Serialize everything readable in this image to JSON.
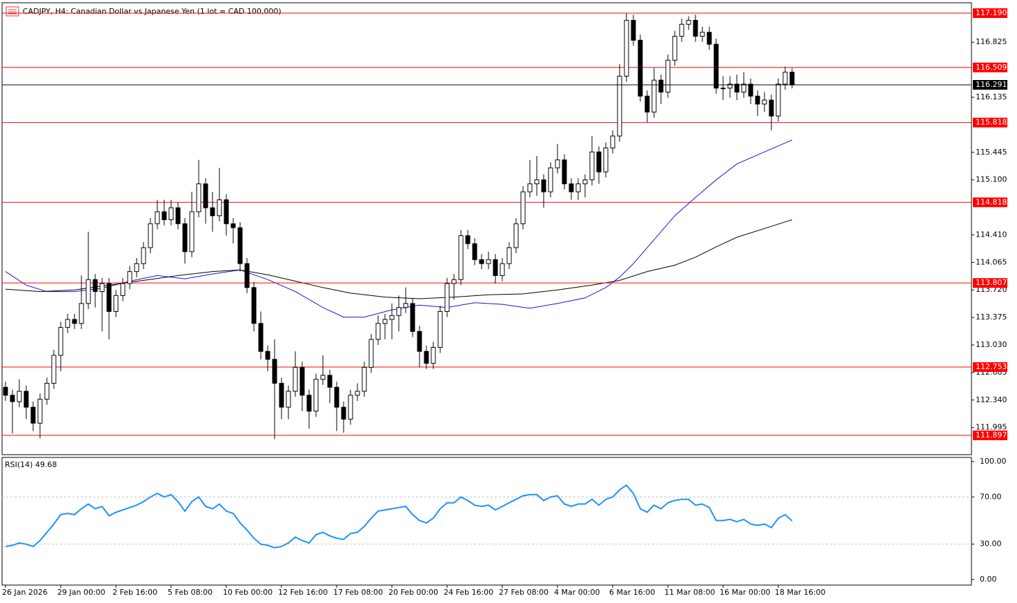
{
  "chart_data": {
    "type": "candlestick",
    "title": "CADJPY, H4:  Canadian Dollar vs Japanese Yen (1 lot = CAD 100,000)",
    "categories": [
      "26 Jan 2026",
      null,
      null,
      null,
      null,
      null,
      null,
      null,
      "29 Jan 00:00",
      null,
      null,
      null,
      null,
      null,
      null,
      null,
      "2 Feb 16:00",
      null,
      null,
      null,
      null,
      null,
      null,
      null,
      "5 Feb 08:00",
      null,
      null,
      null,
      null,
      null,
      null,
      null,
      "10 Feb 00:00",
      null,
      null,
      null,
      null,
      null,
      null,
      null,
      "12 Feb 16:00",
      null,
      null,
      null,
      null,
      null,
      null,
      null,
      "17 Feb 08:00",
      null,
      null,
      null,
      null,
      null,
      null,
      null,
      "20 Feb 00:00",
      null,
      null,
      null,
      null,
      null,
      null,
      null,
      "24 Feb 16:00",
      null,
      null,
      null,
      null,
      null,
      null,
      null,
      "27 Feb 08:00",
      null,
      null,
      null,
      null,
      null,
      null,
      null,
      "4 Mar 00:00",
      null,
      null,
      null,
      null,
      null,
      null,
      null,
      "6 Mar 16:00",
      null,
      null,
      null,
      null,
      null,
      null,
      null,
      "11 Mar 08:00",
      null,
      null,
      null,
      null,
      null,
      null,
      null,
      "16 Mar 00:00",
      null,
      null,
      null,
      null,
      null,
      null,
      null,
      "18 Mar 16:00",
      null,
      null
    ],
    "candles": [
      [
        112.5,
        112.57,
        112.33,
        112.4
      ],
      [
        112.4,
        112.47,
        111.92,
        112.32
      ],
      [
        112.32,
        112.6,
        112.25,
        112.45
      ],
      [
        112.45,
        112.52,
        112.1,
        112.25
      ],
      [
        112.25,
        112.32,
        111.95,
        112.05
      ],
      [
        112.05,
        112.42,
        111.86,
        112.35
      ],
      [
        112.35,
        112.62,
        112.28,
        112.55
      ],
      [
        112.55,
        112.97,
        112.48,
        112.9
      ],
      [
        112.9,
        113.32,
        112.7,
        113.25
      ],
      [
        113.25,
        113.42,
        113.18,
        113.35
      ],
      [
        113.35,
        113.42,
        113.23,
        113.3
      ],
      [
        113.3,
        113.9,
        113.23,
        113.55
      ],
      [
        113.55,
        114.45,
        113.48,
        113.85
      ],
      [
        113.85,
        113.92,
        113.5,
        113.7
      ],
      [
        113.7,
        113.87,
        113.2,
        113.8
      ],
      [
        113.8,
        113.87,
        113.1,
        113.45
      ],
      [
        113.45,
        113.72,
        113.38,
        113.65
      ],
      [
        113.65,
        113.87,
        113.58,
        113.8
      ],
      [
        113.8,
        114.02,
        113.73,
        113.95
      ],
      [
        113.95,
        114.12,
        113.88,
        114.05
      ],
      [
        114.05,
        114.32,
        113.98,
        114.25
      ],
      [
        114.25,
        114.62,
        114.18,
        114.55
      ],
      [
        114.55,
        114.85,
        114.48,
        114.7
      ],
      [
        114.7,
        114.85,
        114.53,
        114.6
      ],
      [
        114.6,
        114.85,
        114.53,
        114.75
      ],
      [
        114.75,
        114.82,
        114.48,
        114.55
      ],
      [
        114.55,
        114.62,
        114.05,
        114.2
      ],
      [
        114.2,
        114.95,
        114.13,
        114.7
      ],
      [
        114.7,
        115.35,
        114.63,
        115.05
      ],
      [
        115.05,
        115.12,
        114.55,
        114.75
      ],
      [
        114.75,
        114.95,
        114.45,
        114.65
      ],
      [
        114.65,
        115.25,
        114.58,
        114.85
      ],
      [
        114.85,
        114.92,
        114.4,
        114.55
      ],
      [
        114.55,
        114.62,
        114.3,
        114.5
      ],
      [
        114.5,
        114.57,
        113.95,
        114.05
      ],
      [
        114.05,
        114.12,
        113.68,
        113.75
      ],
      [
        113.75,
        113.82,
        113.2,
        113.3
      ],
      [
        113.3,
        113.45,
        112.85,
        112.95
      ],
      [
        112.95,
        113.02,
        112.7,
        112.85
      ],
      [
        112.85,
        113.1,
        111.85,
        112.55
      ],
      [
        112.55,
        112.62,
        112.1,
        112.25
      ],
      [
        112.25,
        112.52,
        112.1,
        112.45
      ],
      [
        112.45,
        112.95,
        112.38,
        112.75
      ],
      [
        112.75,
        112.82,
        112.2,
        112.4
      ],
      [
        112.4,
        112.47,
        111.98,
        112.2
      ],
      [
        112.2,
        112.67,
        112.13,
        112.6
      ],
      [
        112.6,
        112.9,
        112.53,
        112.65
      ],
      [
        112.65,
        112.72,
        112.3,
        112.5
      ],
      [
        112.5,
        112.57,
        111.95,
        112.25
      ],
      [
        112.25,
        112.32,
        111.93,
        112.1
      ],
      [
        112.1,
        112.47,
        112.03,
        112.4
      ],
      [
        112.4,
        112.55,
        112.33,
        112.45
      ],
      [
        112.45,
        112.82,
        112.38,
        112.75
      ],
      [
        112.75,
        113.17,
        112.68,
        113.1
      ],
      [
        113.1,
        113.4,
        113.03,
        113.3
      ],
      [
        113.3,
        113.42,
        113.1,
        113.35
      ],
      [
        113.35,
        113.55,
        113.1,
        113.4
      ],
      [
        113.4,
        113.65,
        113.2,
        113.5
      ],
      [
        113.5,
        113.75,
        113.43,
        113.55
      ],
      [
        113.55,
        113.62,
        113.13,
        113.2
      ],
      [
        113.2,
        113.27,
        112.75,
        112.95
      ],
      [
        112.95,
        113.02,
        112.73,
        112.8
      ],
      [
        112.8,
        113.07,
        112.73,
        113.0
      ],
      [
        113.0,
        113.52,
        112.93,
        113.45
      ],
      [
        113.45,
        113.87,
        113.38,
        113.8
      ],
      [
        113.8,
        113.92,
        113.6,
        113.85
      ],
      [
        113.85,
        114.47,
        113.78,
        114.4
      ],
      [
        114.4,
        114.47,
        114.23,
        114.3
      ],
      [
        114.3,
        114.37,
        114.03,
        114.1
      ],
      [
        114.1,
        114.17,
        113.98,
        114.05
      ],
      [
        114.05,
        114.2,
        113.98,
        114.1
      ],
      [
        114.1,
        114.17,
        113.8,
        113.9
      ],
      [
        113.9,
        114.12,
        113.83,
        114.05
      ],
      [
        114.05,
        114.32,
        113.98,
        114.25
      ],
      [
        114.25,
        114.62,
        114.18,
        114.55
      ],
      [
        114.55,
        115.02,
        114.48,
        114.95
      ],
      [
        114.95,
        115.35,
        114.88,
        115.05
      ],
      [
        115.05,
        115.4,
        114.9,
        115.1
      ],
      [
        115.1,
        115.17,
        114.75,
        114.95
      ],
      [
        114.95,
        115.32,
        114.88,
        115.25
      ],
      [
        115.25,
        115.55,
        115.18,
        115.35
      ],
      [
        115.35,
        115.42,
        114.98,
        115.05
      ],
      [
        115.05,
        115.12,
        114.85,
        114.95
      ],
      [
        114.95,
        115.12,
        114.85,
        115.05
      ],
      [
        115.05,
        115.17,
        114.88,
        115.1
      ],
      [
        115.1,
        115.65,
        115.03,
        115.45
      ],
      [
        115.45,
        115.52,
        115.05,
        115.2
      ],
      [
        115.2,
        115.57,
        115.13,
        115.5
      ],
      [
        115.5,
        115.72,
        115.43,
        115.65
      ],
      [
        115.65,
        116.55,
        115.58,
        116.4
      ],
      [
        116.4,
        117.19,
        116.33,
        117.1
      ],
      [
        117.1,
        117.17,
        116.78,
        116.85
      ],
      [
        116.85,
        116.92,
        116.08,
        116.15
      ],
      [
        116.15,
        116.22,
        115.82,
        115.95
      ],
      [
        115.95,
        116.5,
        115.88,
        116.35
      ],
      [
        116.35,
        116.42,
        116.05,
        116.2
      ],
      [
        116.2,
        116.67,
        116.13,
        116.6
      ],
      [
        116.6,
        116.97,
        116.53,
        116.9
      ],
      [
        116.9,
        117.12,
        116.83,
        117.05
      ],
      [
        117.05,
        117.15,
        116.98,
        117.1
      ],
      [
        117.1,
        117.17,
        116.83,
        116.9
      ],
      [
        116.9,
        117.02,
        116.83,
        116.95
      ],
      [
        116.95,
        117.02,
        116.73,
        116.8
      ],
      [
        116.8,
        116.87,
        116.18,
        116.25
      ],
      [
        116.25,
        116.4,
        116.1,
        116.25
      ],
      [
        116.25,
        116.4,
        116.13,
        116.3
      ],
      [
        116.3,
        116.42,
        116.1,
        116.2
      ],
      [
        116.2,
        116.45,
        116.13,
        116.3
      ],
      [
        116.3,
        116.37,
        116.05,
        116.15
      ],
      [
        116.15,
        116.22,
        115.9,
        116.05
      ],
      [
        116.05,
        116.2,
        115.95,
        116.1
      ],
      [
        116.1,
        116.17,
        115.72,
        115.9
      ],
      [
        115.9,
        116.37,
        115.83,
        116.3
      ],
      [
        116.3,
        116.52,
        116.23,
        116.45
      ],
      [
        116.45,
        116.5,
        116.25,
        116.29
      ]
    ],
    "ylim": [
      111.655,
      117.32
    ],
    "yticks": [
      116.825,
      116.135,
      115.445,
      {
        "value": 115.1,
        "label": "115.100"
      },
      {
        "value": 114.41,
        "label": "114.410"
      },
      114.065,
      {
        "value": 113.72,
        "label": "113.720"
      },
      113.375,
      {
        "value": 113.03,
        "label": "113.030"
      },
      112.685,
      {
        "value": 112.34,
        "label": "112.340"
      },
      111.995
    ],
    "ma_lines": [
      {
        "color": "#1515d0",
        "x": [
          0,
          3,
          6,
          10,
          14,
          18,
          22,
          26,
          30,
          34,
          38,
          42,
          46,
          49,
          52,
          56,
          60,
          64,
          68,
          72,
          76,
          80,
          84,
          87,
          89,
          91,
          94,
          97,
          100,
          103,
          106,
          110,
          114
        ],
        "values": [
          113.95,
          113.78,
          113.7,
          113.7,
          113.74,
          113.83,
          113.9,
          113.86,
          113.92,
          113.97,
          113.85,
          113.7,
          113.5,
          113.38,
          113.38,
          113.47,
          113.53,
          113.5,
          113.56,
          113.54,
          113.49,
          113.55,
          113.62,
          113.75,
          113.88,
          114.05,
          114.35,
          114.65,
          114.88,
          115.1,
          115.3,
          115.45,
          115.6
        ]
      },
      {
        "color": "#000000",
        "x": [
          0,
          5,
          10,
          15,
          20,
          25,
          30,
          34,
          38,
          42,
          46,
          50,
          55,
          60,
          65,
          70,
          75,
          80,
          85,
          89,
          93,
          97,
          100,
          103,
          106,
          110,
          114
        ],
        "values": [
          113.73,
          113.7,
          113.72,
          113.78,
          113.84,
          113.9,
          113.95,
          113.97,
          113.91,
          113.83,
          113.75,
          113.68,
          113.63,
          113.61,
          113.63,
          113.66,
          113.67,
          113.72,
          113.78,
          113.84,
          113.95,
          114.03,
          114.13,
          114.26,
          114.38,
          114.49,
          114.6
        ]
      }
    ],
    "level_color": "#ff0000",
    "levels": [
      {
        "value": 117.19,
        "label": "117.190"
      },
      116.509,
      115.818,
      114.818,
      113.807,
      112.753,
      111.897
    ],
    "current_price": 116.291,
    "rsi": {
      "title": "RSI(14) 49.68",
      "color": "#1e90ff",
      "ylim": [
        -4.7,
        103.5
      ],
      "yticks": [
        {
          "value": 100,
          "label": "100.00"
        },
        {
          "value": 70,
          "label": "70.00"
        },
        {
          "value": 30,
          "label": "30.00"
        },
        {
          "value": 0,
          "label": "0.00"
        }
      ],
      "levels": [
        70,
        30
      ],
      "values": [
        28,
        29,
        31,
        30,
        28,
        33,
        40,
        47,
        55,
        56,
        55,
        60,
        64,
        60,
        62,
        54,
        57,
        59,
        61,
        63,
        66,
        70,
        73,
        70,
        72,
        66,
        58,
        66,
        70,
        62,
        60,
        64,
        58,
        56,
        48,
        42,
        35,
        30,
        29,
        27,
        28,
        31,
        36,
        33,
        31,
        38,
        40,
        37,
        35,
        34,
        39,
        40,
        45,
        52,
        58,
        59,
        60,
        61,
        62,
        55,
        50,
        48,
        52,
        60,
        65,
        65,
        70,
        67,
        63,
        62,
        63,
        59,
        62,
        65,
        68,
        71,
        72,
        72,
        67,
        70,
        71,
        64,
        62,
        64,
        64,
        68,
        63,
        68,
        70,
        76,
        80,
        73,
        60,
        57,
        63,
        60,
        65,
        67,
        68,
        68,
        63,
        64,
        61,
        50,
        50,
        51,
        49,
        51,
        47,
        46,
        47,
        44,
        52,
        55,
        49.68
      ]
    }
  }
}
